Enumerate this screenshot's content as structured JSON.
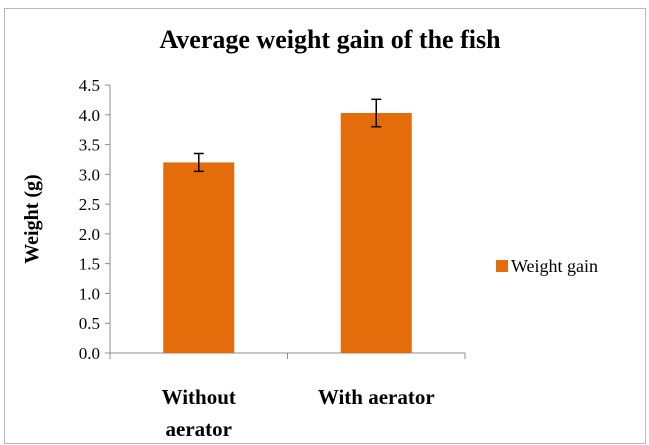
{
  "chart_data": {
    "type": "bar",
    "title": "Average weight gain of the fish",
    "xlabel": "",
    "ylabel": "Weight (g)",
    "categories": [
      "Without aerator",
      "With aerator"
    ],
    "category_lines": [
      [
        "Without",
        "aerator"
      ],
      [
        "With aerator"
      ]
    ],
    "series": [
      {
        "name": "Weight gain",
        "values": [
          3.2,
          4.03
        ],
        "error": [
          0.15,
          0.23
        ],
        "color": "#e46c0a"
      }
    ],
    "ylim": [
      0,
      4.5
    ],
    "yticks": [
      "0.0",
      "0.5",
      "1.0",
      "1.5",
      "2.0",
      "2.5",
      "3.0",
      "3.5",
      "4.0",
      "4.5"
    ],
    "grid": false,
    "legend_position": "right"
  }
}
